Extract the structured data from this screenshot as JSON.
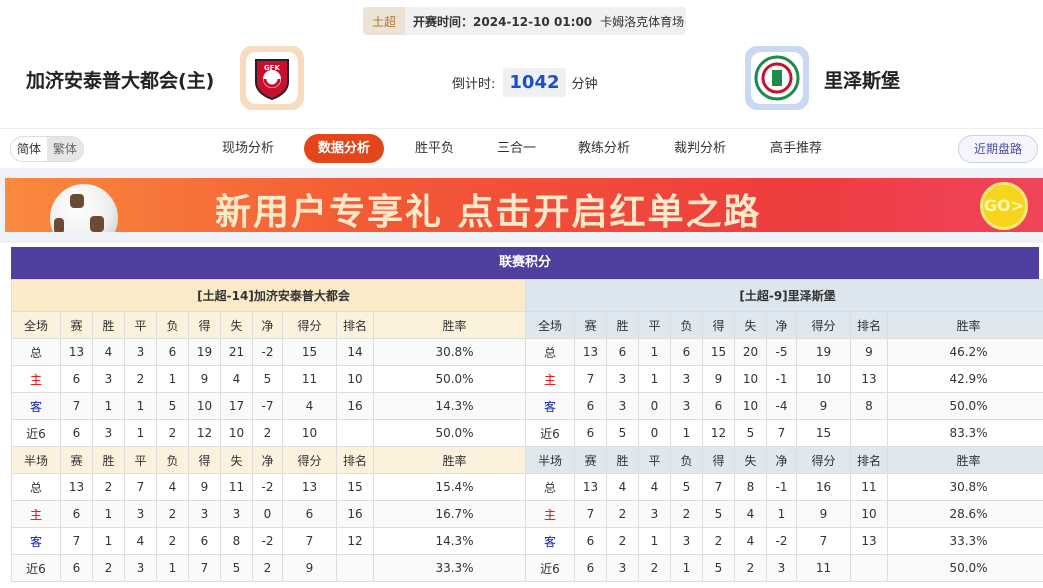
{
  "match": {
    "league": "土超",
    "time_label": "开赛时间：2024-12-10 01:00",
    "venue": "卡姆洛克体育场"
  },
  "home": {
    "name": "加济安泰普大都会(主)",
    "logo_text": "GFK"
  },
  "away": {
    "name": "里泽斯堡"
  },
  "countdown": {
    "label": "倒计时:",
    "value": "1042",
    "unit": "分钟"
  },
  "lang": {
    "simplified": "简体",
    "traditional": "繁体"
  },
  "nav": {
    "tabs": [
      "现场分析",
      "数据分析",
      "胜平负",
      "三合一",
      "教练分析",
      "裁判分析",
      "高手推荐"
    ],
    "active": 1,
    "recent": "近期盘路"
  },
  "banner": {
    "text": "新用户专享礼  点击开启红单之路",
    "go": "GO>"
  },
  "standings": {
    "title": "联赛积分",
    "cols": [
      "赛",
      "胜",
      "平",
      "负",
      "得",
      "失",
      "净",
      "得分",
      "排名",
      "胜率"
    ],
    "full_label": "全场",
    "half_label": "半场",
    "teams": [
      {
        "header": "[土超-14]加济安泰普大都会",
        "full": [
          [
            "总",
            "13",
            "4",
            "3",
            "6",
            "19",
            "21",
            "-2",
            "15",
            "14",
            "30.8%"
          ],
          [
            "主",
            "6",
            "3",
            "2",
            "1",
            "9",
            "4",
            "5",
            "11",
            "10",
            "50.0%"
          ],
          [
            "客",
            "7",
            "1",
            "1",
            "5",
            "10",
            "17",
            "-7",
            "4",
            "16",
            "14.3%"
          ],
          [
            "近6",
            "6",
            "3",
            "1",
            "2",
            "12",
            "10",
            "2",
            "10",
            "",
            "50.0%"
          ]
        ],
        "half": [
          [
            "总",
            "13",
            "2",
            "7",
            "4",
            "9",
            "11",
            "-2",
            "13",
            "15",
            "15.4%"
          ],
          [
            "主",
            "6",
            "1",
            "3",
            "2",
            "3",
            "3",
            "0",
            "6",
            "16",
            "16.7%"
          ],
          [
            "客",
            "7",
            "1",
            "4",
            "2",
            "6",
            "8",
            "-2",
            "7",
            "12",
            "14.3%"
          ],
          [
            "近6",
            "6",
            "2",
            "3",
            "1",
            "7",
            "5",
            "2",
            "9",
            "",
            "33.3%"
          ]
        ]
      },
      {
        "header": "[土超-9]里泽斯堡",
        "full": [
          [
            "总",
            "13",
            "6",
            "1",
            "6",
            "15",
            "20",
            "-5",
            "19",
            "9",
            "46.2%"
          ],
          [
            "主",
            "7",
            "3",
            "1",
            "3",
            "9",
            "10",
            "-1",
            "10",
            "13",
            "42.9%"
          ],
          [
            "客",
            "6",
            "3",
            "0",
            "3",
            "6",
            "10",
            "-4",
            "9",
            "8",
            "50.0%"
          ],
          [
            "近6",
            "6",
            "5",
            "0",
            "1",
            "12",
            "5",
            "7",
            "15",
            "",
            "83.3%"
          ]
        ],
        "half": [
          [
            "总",
            "13",
            "4",
            "4",
            "5",
            "7",
            "8",
            "-1",
            "16",
            "11",
            "30.8%"
          ],
          [
            "主",
            "7",
            "2",
            "3",
            "2",
            "5",
            "4",
            "1",
            "9",
            "10",
            "28.6%"
          ],
          [
            "客",
            "6",
            "2",
            "1",
            "3",
            "2",
            "4",
            "-2",
            "7",
            "13",
            "33.3%"
          ],
          [
            "近6",
            "6",
            "3",
            "2",
            "1",
            "5",
            "2",
            "3",
            "11",
            "",
            "50.0%"
          ]
        ]
      }
    ]
  },
  "colors": {
    "accent": "#e2461a",
    "title_bar": "#4f3f9e",
    "home_red": "#e00",
    "away_blue": "#12a"
  }
}
